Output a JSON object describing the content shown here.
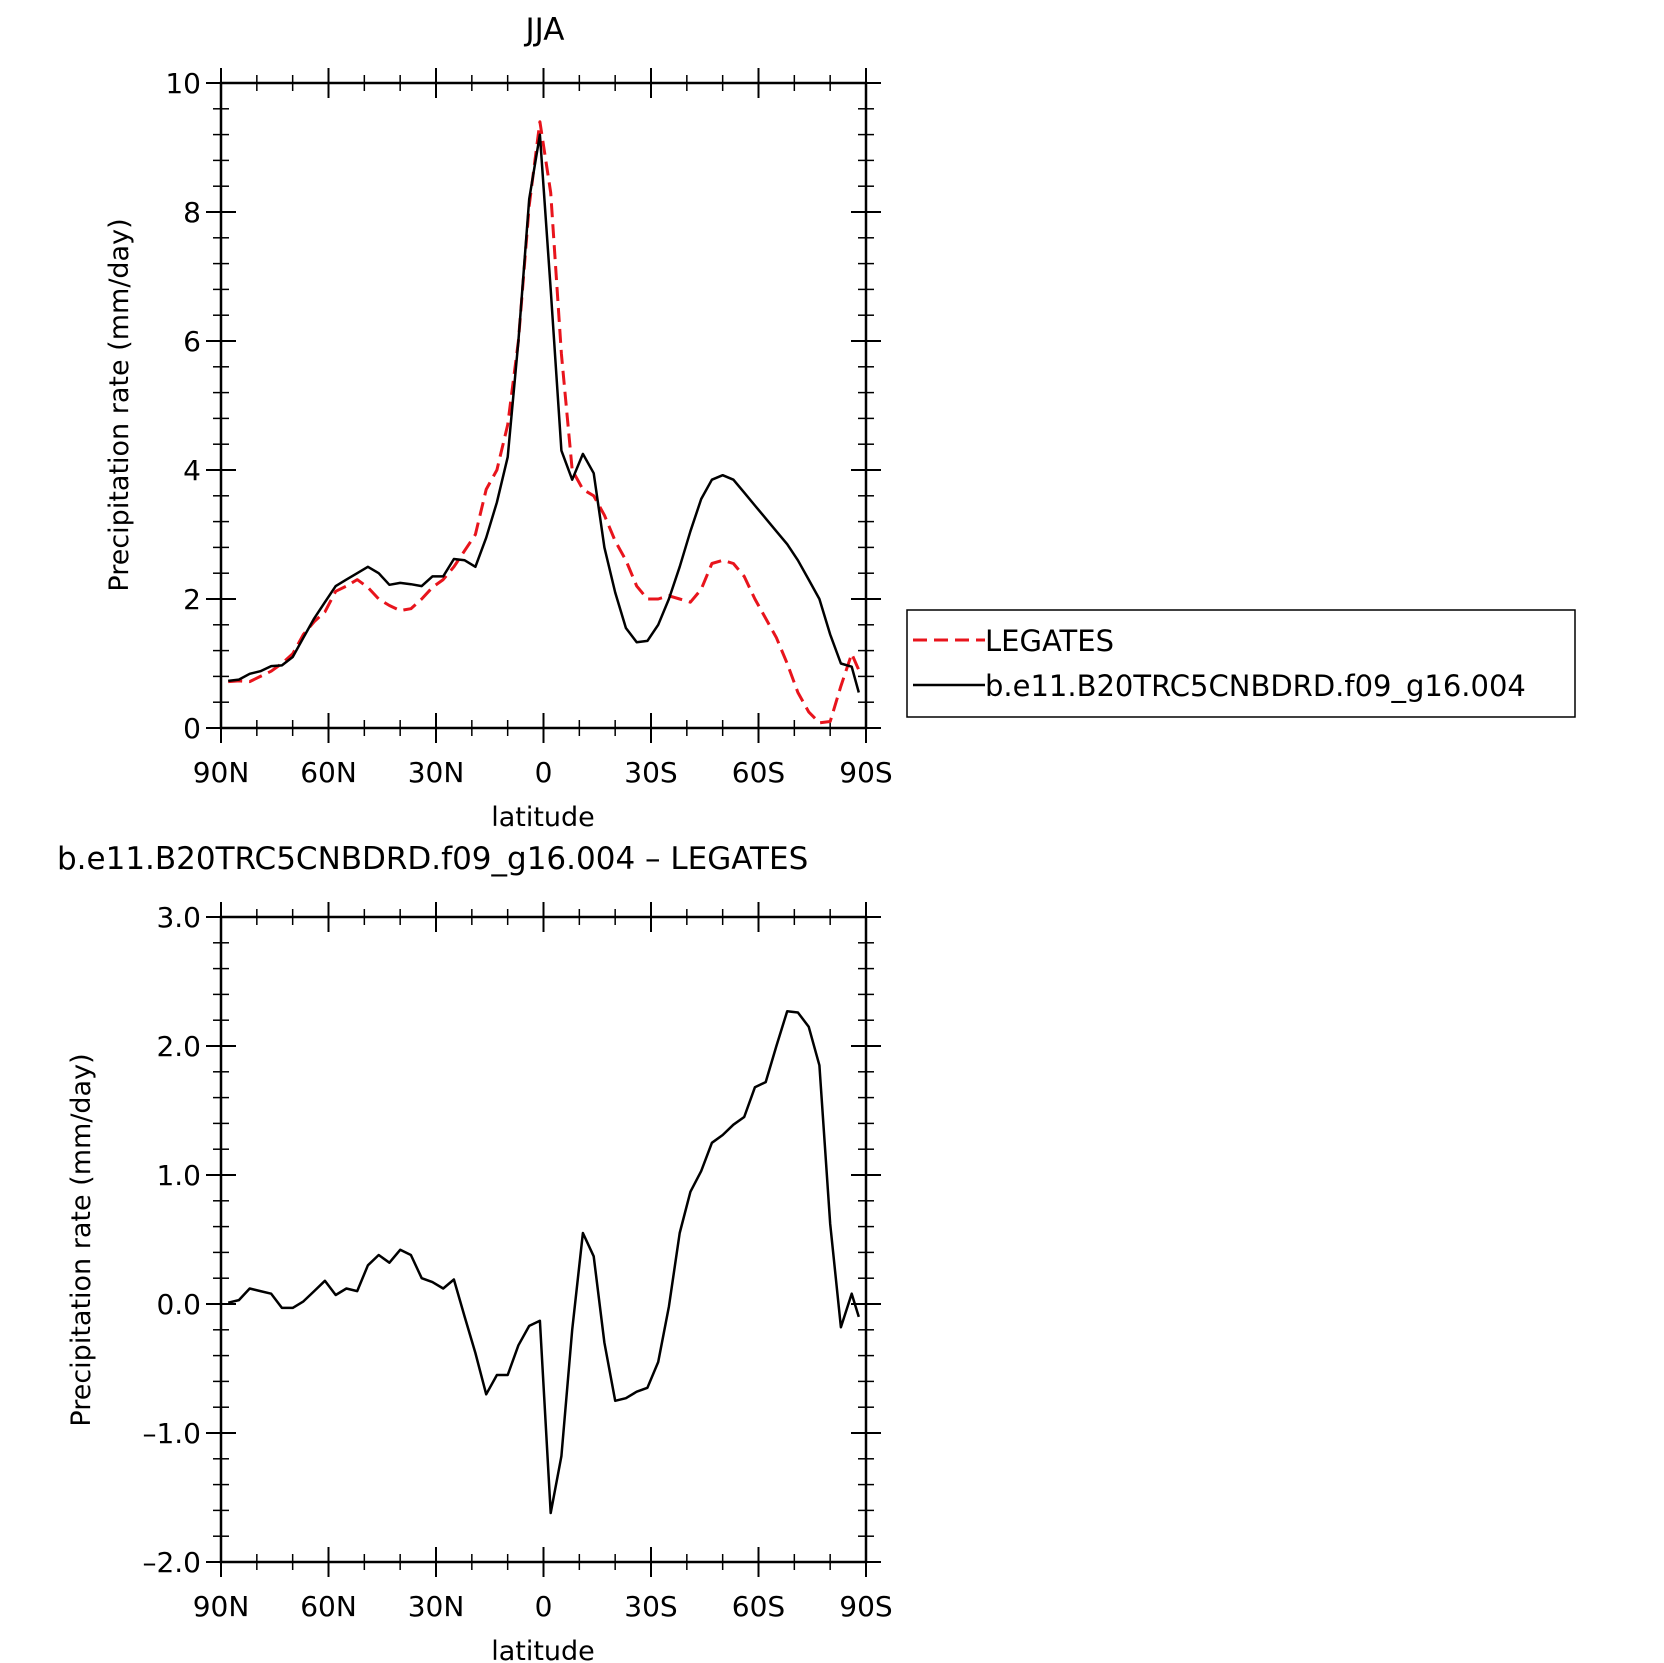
{
  "colors": {
    "model": "#000000",
    "obs": "#e8141c",
    "axis": "#000000"
  },
  "chart_data": [
    {
      "type": "line",
      "title": "JJA",
      "xlabel": "latitude",
      "ylabel": "Precipitation rate (mm/day)",
      "xlim": [
        90,
        -90
      ],
      "ylim": [
        0,
        10
      ],
      "xticks": [
        90,
        60,
        30,
        0,
        -30,
        -60,
        -90
      ],
      "xtick_labels": [
        "90N",
        "60N",
        "30N",
        "0",
        "30S",
        "60S",
        "90S"
      ],
      "yticks": [
        0,
        2,
        4,
        6,
        8,
        10
      ],
      "ytick_labels": [
        "0",
        "2",
        "4",
        "6",
        "8",
        "10"
      ],
      "legend_position": "right",
      "series": [
        {
          "name": "LEGATES",
          "style": "dashed",
          "color": "#e8141c",
          "x": [
            88,
            85,
            82,
            79,
            76,
            73,
            70,
            67,
            64,
            61,
            58,
            55,
            52,
            49,
            46,
            43,
            40,
            37,
            34,
            31,
            28,
            25,
            22,
            19,
            16,
            13,
            10,
            7,
            4,
            1,
            -2,
            -5,
            -8,
            -11,
            -14,
            -17,
            -20,
            -23,
            -26,
            -29,
            -32,
            -35,
            -38,
            -41,
            -44,
            -47,
            -50,
            -53,
            -56,
            -59,
            -62,
            -65,
            -68,
            -71,
            -74,
            -77,
            -80,
            -83,
            -86,
            -88
          ],
          "y": [
            0.72,
            0.73,
            0.72,
            0.8,
            0.88,
            1.0,
            1.15,
            1.45,
            1.65,
            1.8,
            2.12,
            2.2,
            2.3,
            2.18,
            2.0,
            1.9,
            1.82,
            1.85,
            2.0,
            2.18,
            2.3,
            2.5,
            2.75,
            3.0,
            3.7,
            4.0,
            4.7,
            6.0,
            8.1,
            9.4,
            8.3,
            5.8,
            4.0,
            3.7,
            3.6,
            3.3,
            2.9,
            2.6,
            2.2,
            2.0,
            2.0,
            2.05,
            2.0,
            1.95,
            2.15,
            2.55,
            2.6,
            2.55,
            2.35,
            2.0,
            1.7,
            1.4,
            1.0,
            0.55,
            0.25,
            0.08,
            0.1,
            0.65,
            1.15,
            0.9
          ]
        },
        {
          "name": "b.e11.B20TRC5CNBDRD.f09_g16.004",
          "style": "solid",
          "color": "#000000",
          "x": [
            88,
            85,
            82,
            79,
            76,
            73,
            70,
            67,
            64,
            61,
            58,
            55,
            52,
            49,
            46,
            43,
            40,
            37,
            34,
            31,
            28,
            25,
            22,
            19,
            16,
            13,
            10,
            7,
            4,
            1,
            -2,
            -5,
            -8,
            -11,
            -14,
            -17,
            -20,
            -23,
            -26,
            -29,
            -32,
            -35,
            -38,
            -41,
            -44,
            -47,
            -50,
            -53,
            -56,
            -59,
            -62,
            -65,
            -68,
            -71,
            -74,
            -77,
            -80,
            -83,
            -86,
            -88
          ],
          "y": [
            0.73,
            0.75,
            0.84,
            0.88,
            0.96,
            0.97,
            1.1,
            1.4,
            1.7,
            1.95,
            2.2,
            2.3,
            2.4,
            2.5,
            2.4,
            2.22,
            2.25,
            2.23,
            2.2,
            2.35,
            2.35,
            2.62,
            2.6,
            2.5,
            2.95,
            3.5,
            4.2,
            6.0,
            8.2,
            9.2,
            6.8,
            4.3,
            3.85,
            4.25,
            3.95,
            2.8,
            2.1,
            1.55,
            1.33,
            1.35,
            1.6,
            2.0,
            2.5,
            3.05,
            3.55,
            3.85,
            3.92,
            3.85,
            3.65,
            3.45,
            3.25,
            3.05,
            2.85,
            2.6,
            2.3,
            2.0,
            1.45,
            1.0,
            0.95,
            0.55
          ]
        }
      ]
    },
    {
      "type": "line",
      "title": "b.e11.B20TRC5CNBDRD.f09_g16.004 – LEGATES",
      "xlabel": "latitude",
      "ylabel": "Precipitation rate (mm/day)",
      "xlim": [
        90,
        -90
      ],
      "ylim": [
        -2.0,
        3.0
      ],
      "xticks": [
        90,
        60,
        30,
        0,
        -30,
        -60,
        -90
      ],
      "xtick_labels": [
        "90N",
        "60N",
        "30N",
        "0",
        "30S",
        "60S",
        "90S"
      ],
      "yticks": [
        -2.0,
        -1.0,
        0.0,
        1.0,
        2.0,
        3.0
      ],
      "ytick_labels": [
        "–2.0",
        "–1.0",
        "0.0",
        "1.0",
        "2.0",
        "3.0"
      ],
      "series": [
        {
          "style": "solid",
          "color": "#000000",
          "x": [
            88,
            85,
            82,
            79,
            76,
            73,
            70,
            67,
            64,
            61,
            58,
            55,
            52,
            49,
            46,
            43,
            40,
            37,
            34,
            31,
            28,
            25,
            22,
            19,
            16,
            13,
            10,
            7,
            4,
            1,
            -2,
            -5,
            -8,
            -11,
            -14,
            -17,
            -20,
            -23,
            -26,
            -29,
            -32,
            -35,
            -38,
            -41,
            -44,
            -47,
            -50,
            -53,
            -56,
            -59,
            -62,
            -65,
            -68,
            -71,
            -74,
            -77,
            -80,
            -83,
            -86,
            -88
          ],
          "y": [
            0.01,
            0.03,
            0.12,
            0.1,
            0.08,
            -0.03,
            -0.03,
            0.02,
            0.1,
            0.18,
            0.07,
            0.12,
            0.1,
            0.3,
            0.38,
            0.32,
            0.42,
            0.38,
            0.2,
            0.17,
            0.12,
            0.19,
            -0.1,
            -0.38,
            -0.7,
            -0.55,
            -0.55,
            -0.32,
            -0.17,
            -0.13,
            -1.62,
            -1.18,
            -0.2,
            0.55,
            0.37,
            -0.3,
            -0.75,
            -0.73,
            -0.68,
            -0.65,
            -0.45,
            -0.02,
            0.55,
            0.87,
            1.03,
            1.25,
            1.31,
            1.39,
            1.45,
            1.68,
            1.72,
            2.0,
            2.27,
            2.26,
            2.15,
            1.85,
            0.62,
            -0.18,
            0.08,
            -0.1
          ]
        }
      ]
    }
  ]
}
